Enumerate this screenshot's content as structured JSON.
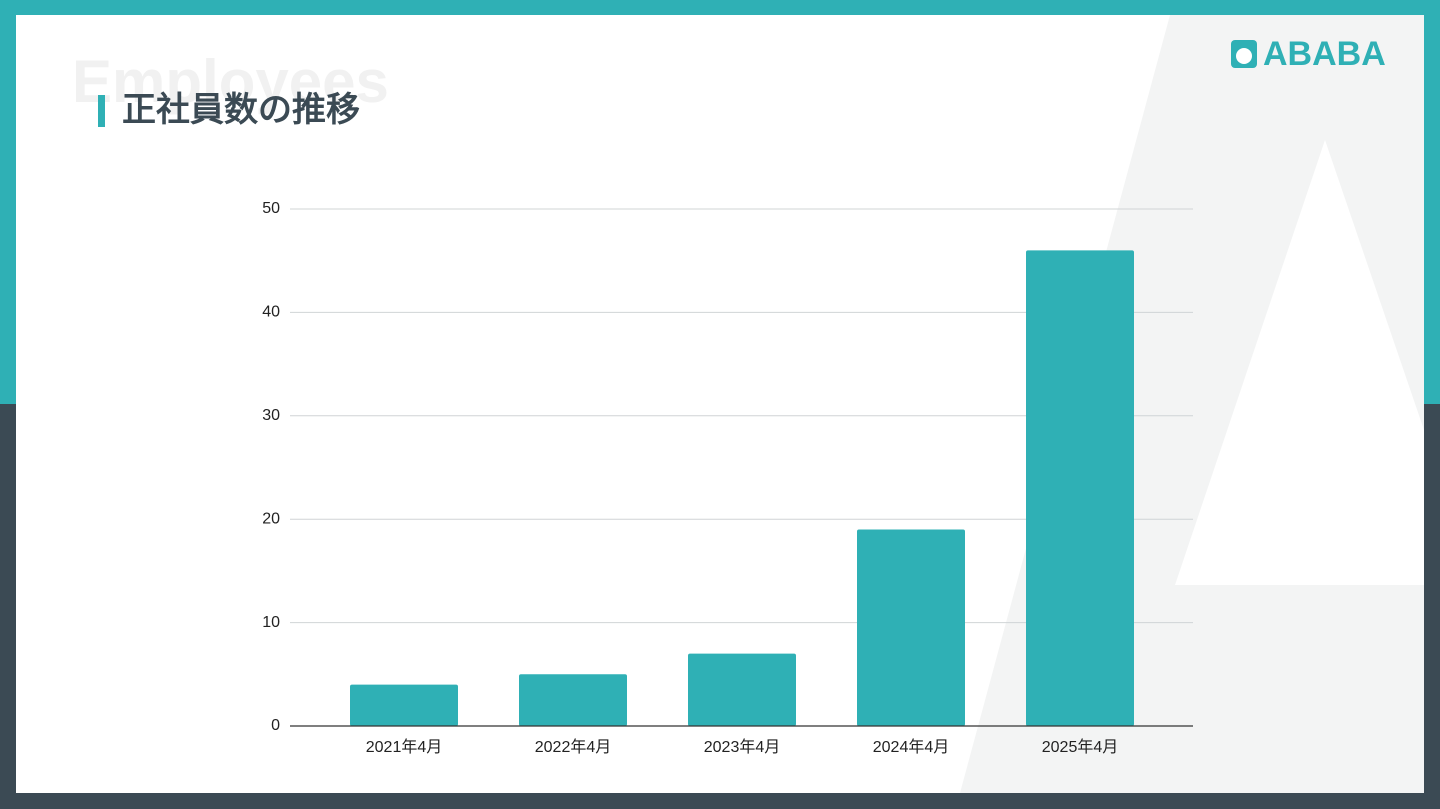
{
  "header": {
    "watermark": "Employees",
    "title": "正社員数の推移",
    "logo": "ABABA"
  },
  "chart_data": {
    "type": "bar",
    "categories": [
      "2021年4月",
      "2022年4月",
      "2023年4月",
      "2024年4月",
      "2025年4月"
    ],
    "values": [
      4,
      5,
      7,
      19,
      46
    ],
    "color": "#2fb0b5",
    "ylim": [
      0,
      50
    ],
    "yticks": [
      0,
      10,
      20,
      30,
      40,
      50
    ],
    "grid": true
  }
}
